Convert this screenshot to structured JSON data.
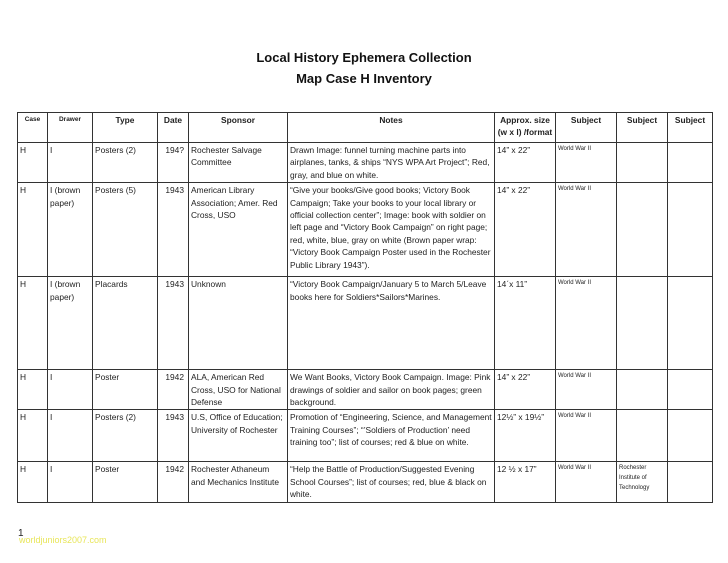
{
  "title": "Local History Ephemera Collection",
  "subtitle": "Map Case H Inventory",
  "headers": [
    "Case",
    "Drawer",
    "Type",
    "Date",
    "Sponsor",
    "Notes",
    "Approx. size (w x l) /format",
    "Subject",
    "Subject",
    "Subject"
  ],
  "rows": [
    [
      "H",
      "I",
      "Posters (2)",
      "194?",
      "Rochester Salvage Committee",
      "Drawn Image: funnel turning machine parts into airplanes, tanks, & ships “NYS WPA Art Project”; Red, gray, and blue on white.",
      "14” x 22”",
      "World War II",
      "",
      ""
    ],
    [
      "H",
      "I (brown paper)",
      "Posters (5)",
      "1943",
      "American Library Association; Amer. Red Cross, USO",
      "“Give your books/Give good books; Victory Book Campaign; Take your books to your local library or official collection center”;  Image: book with soldier on left page and “Victory Book Campaign” on right page; red, white, blue, gray on white (Brown paper wrap: “Victory Book Campaign Poster used in the Rochester Public Library 1943”).",
      "14” x 22”",
      "World War II",
      "",
      ""
    ],
    [
      "H",
      "I (brown paper)",
      "Placards",
      "1943",
      "Unknown",
      "“Victory Book Campaign/January 5 to March 5/Leave books here for Soldiers*Sailors*Marines.",
      "14΄x 11”",
      "World War II",
      "",
      ""
    ],
    [
      "H",
      "I",
      "Poster",
      "1942",
      "ALA, American Red Cross, USO for National Defense",
      "We Want Books, Victory Book Campaign.  Image: Pink drawings of soldier and sailor on book pages; green background.",
      "14” x 22”",
      "World War II",
      "",
      ""
    ],
    [
      "H",
      "I",
      "Posters (2)",
      "1943",
      "U.S, Office of Education; University of Rochester",
      "Promotion of “Engineering, Science, and Management Training Courses”; “’Soldiers of Production’ need training too”; list of courses; red & blue on white.",
      "12½” x 19½”",
      "World War II",
      "",
      ""
    ],
    [
      "H",
      "I",
      "Poster",
      "1942",
      "Rochester Athaneum and Mechanics Institute",
      "“Help the Battle of Production/Suggested Evening School Courses”; list of courses; red, blue & black on white.",
      "12 ½ x 17”",
      "World War II",
      "Rochester Institute of Technology",
      ""
    ]
  ],
  "page_number": "1",
  "watermark": "worldjuniors2007.com"
}
